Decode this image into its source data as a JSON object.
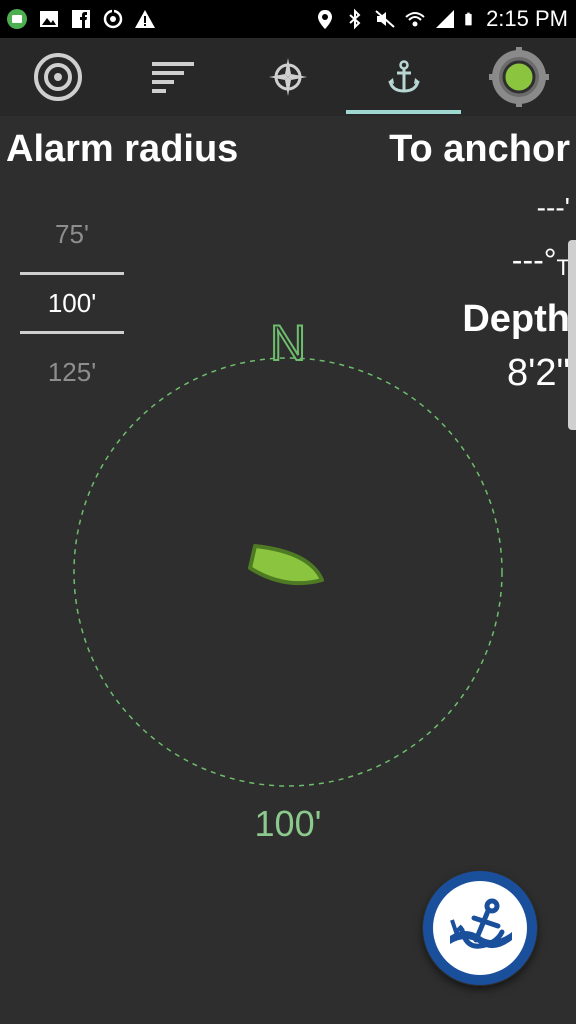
{
  "status_bar": {
    "time": "2:15 PM",
    "left_icons": [
      "notification-app-icon",
      "image-icon",
      "facebook-icon",
      "sync-icon",
      "warning-icon"
    ],
    "right_icons": [
      "location-icon",
      "bluetooth-icon",
      "mute-icon",
      "wifi-icon",
      "signal-icon",
      "battery-icon"
    ]
  },
  "toolbar": {
    "tabs": [
      {
        "name": "radar",
        "icon": "target-icon"
      },
      {
        "name": "filter",
        "icon": "sort-icon"
      },
      {
        "name": "compass",
        "icon": "compass-rose-icon"
      },
      {
        "name": "anchor",
        "icon": "anchor-icon",
        "selected": true
      },
      {
        "name": "status",
        "icon": "gear-status-icon"
      }
    ],
    "accent_color": "#9ed8d0"
  },
  "alarm": {
    "title": "Alarm radius",
    "options": [
      "75'",
      "100'",
      "125'"
    ],
    "selected": "100'"
  },
  "to_anchor": {
    "title": "To anchor",
    "distance": "---'",
    "bearing": "---°",
    "bearing_ref": "T"
  },
  "depth": {
    "label": "Depth",
    "value": "8'2\""
  },
  "compass": {
    "north_label": "N",
    "radius_label": "100'",
    "circle_color": "#6dbd6d",
    "boat_color": "#8bc53f"
  },
  "fab": {
    "icon": "anchor-drop-icon",
    "color": "#1a4f9c"
  }
}
